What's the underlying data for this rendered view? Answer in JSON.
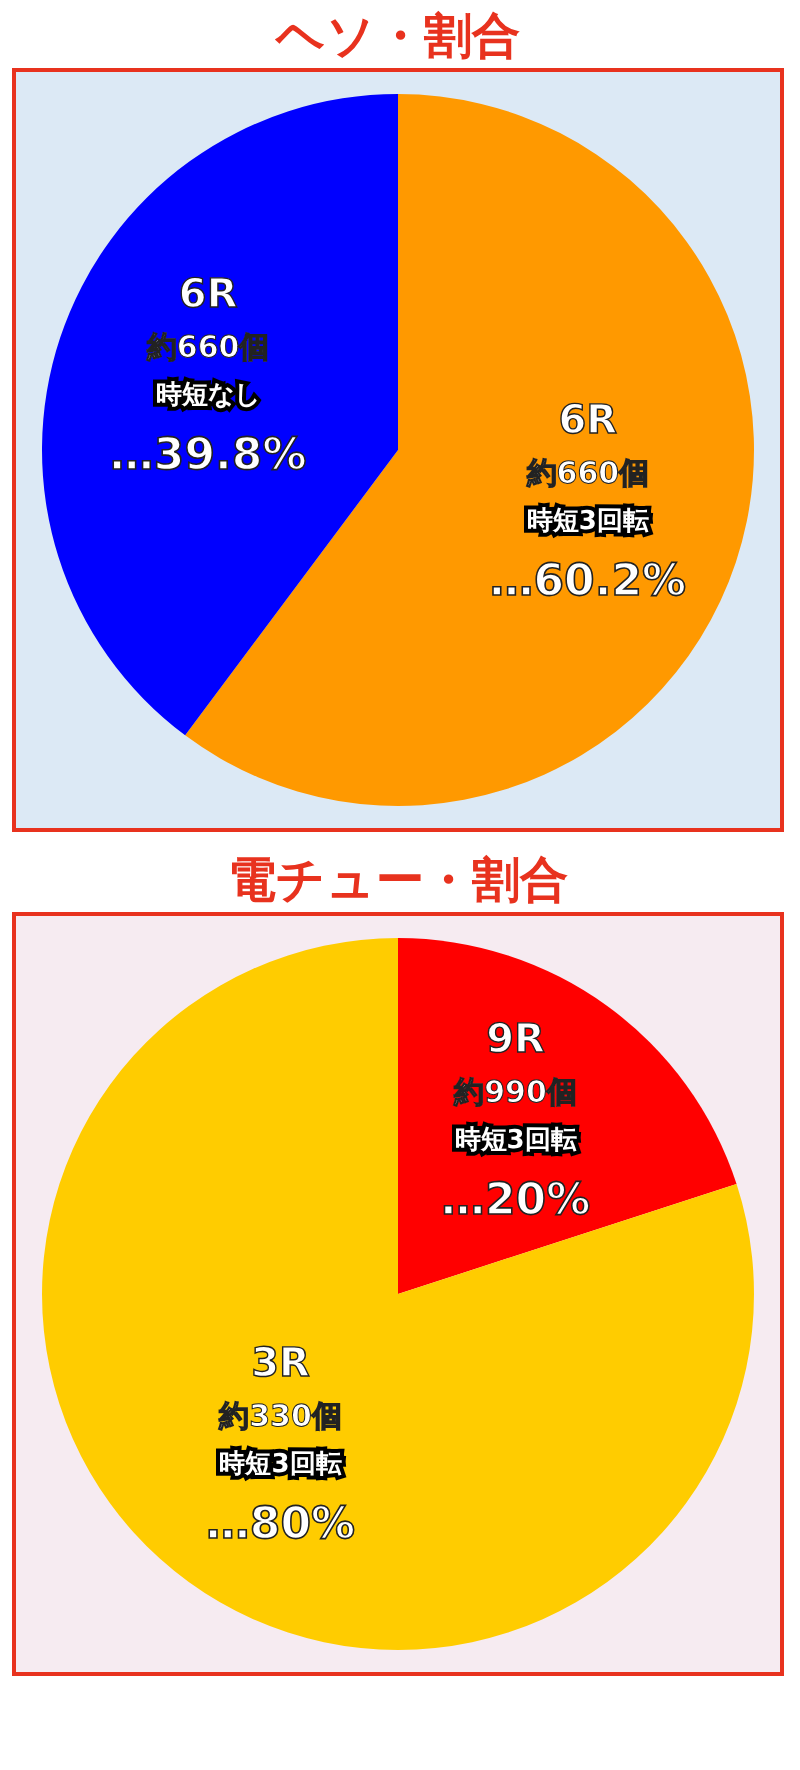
{
  "chart_data": [
    {
      "type": "pie",
      "title": "ヘソ・割合",
      "categories": [
        "6R",
        "6R"
      ],
      "annotations": [
        "約660個",
        "時短3回転",
        "約660個",
        "時短なし"
      ],
      "values": [
        60.2,
        39.8
      ],
      "colors": [
        "#ff9900",
        "#0000ff"
      ],
      "value_labels": [
        "…60.2%",
        "…39.8%"
      ]
    },
    {
      "type": "pie",
      "title": "電チュー・割合",
      "categories": [
        "9R",
        "3R"
      ],
      "annotations": [
        "約990個",
        "時短3回転",
        "約330個",
        "時短3回転"
      ],
      "values": [
        20,
        80
      ],
      "colors": [
        "#ff0000",
        "#ffcc00"
      ],
      "value_labels": [
        "…20%",
        "…80%"
      ]
    }
  ]
}
